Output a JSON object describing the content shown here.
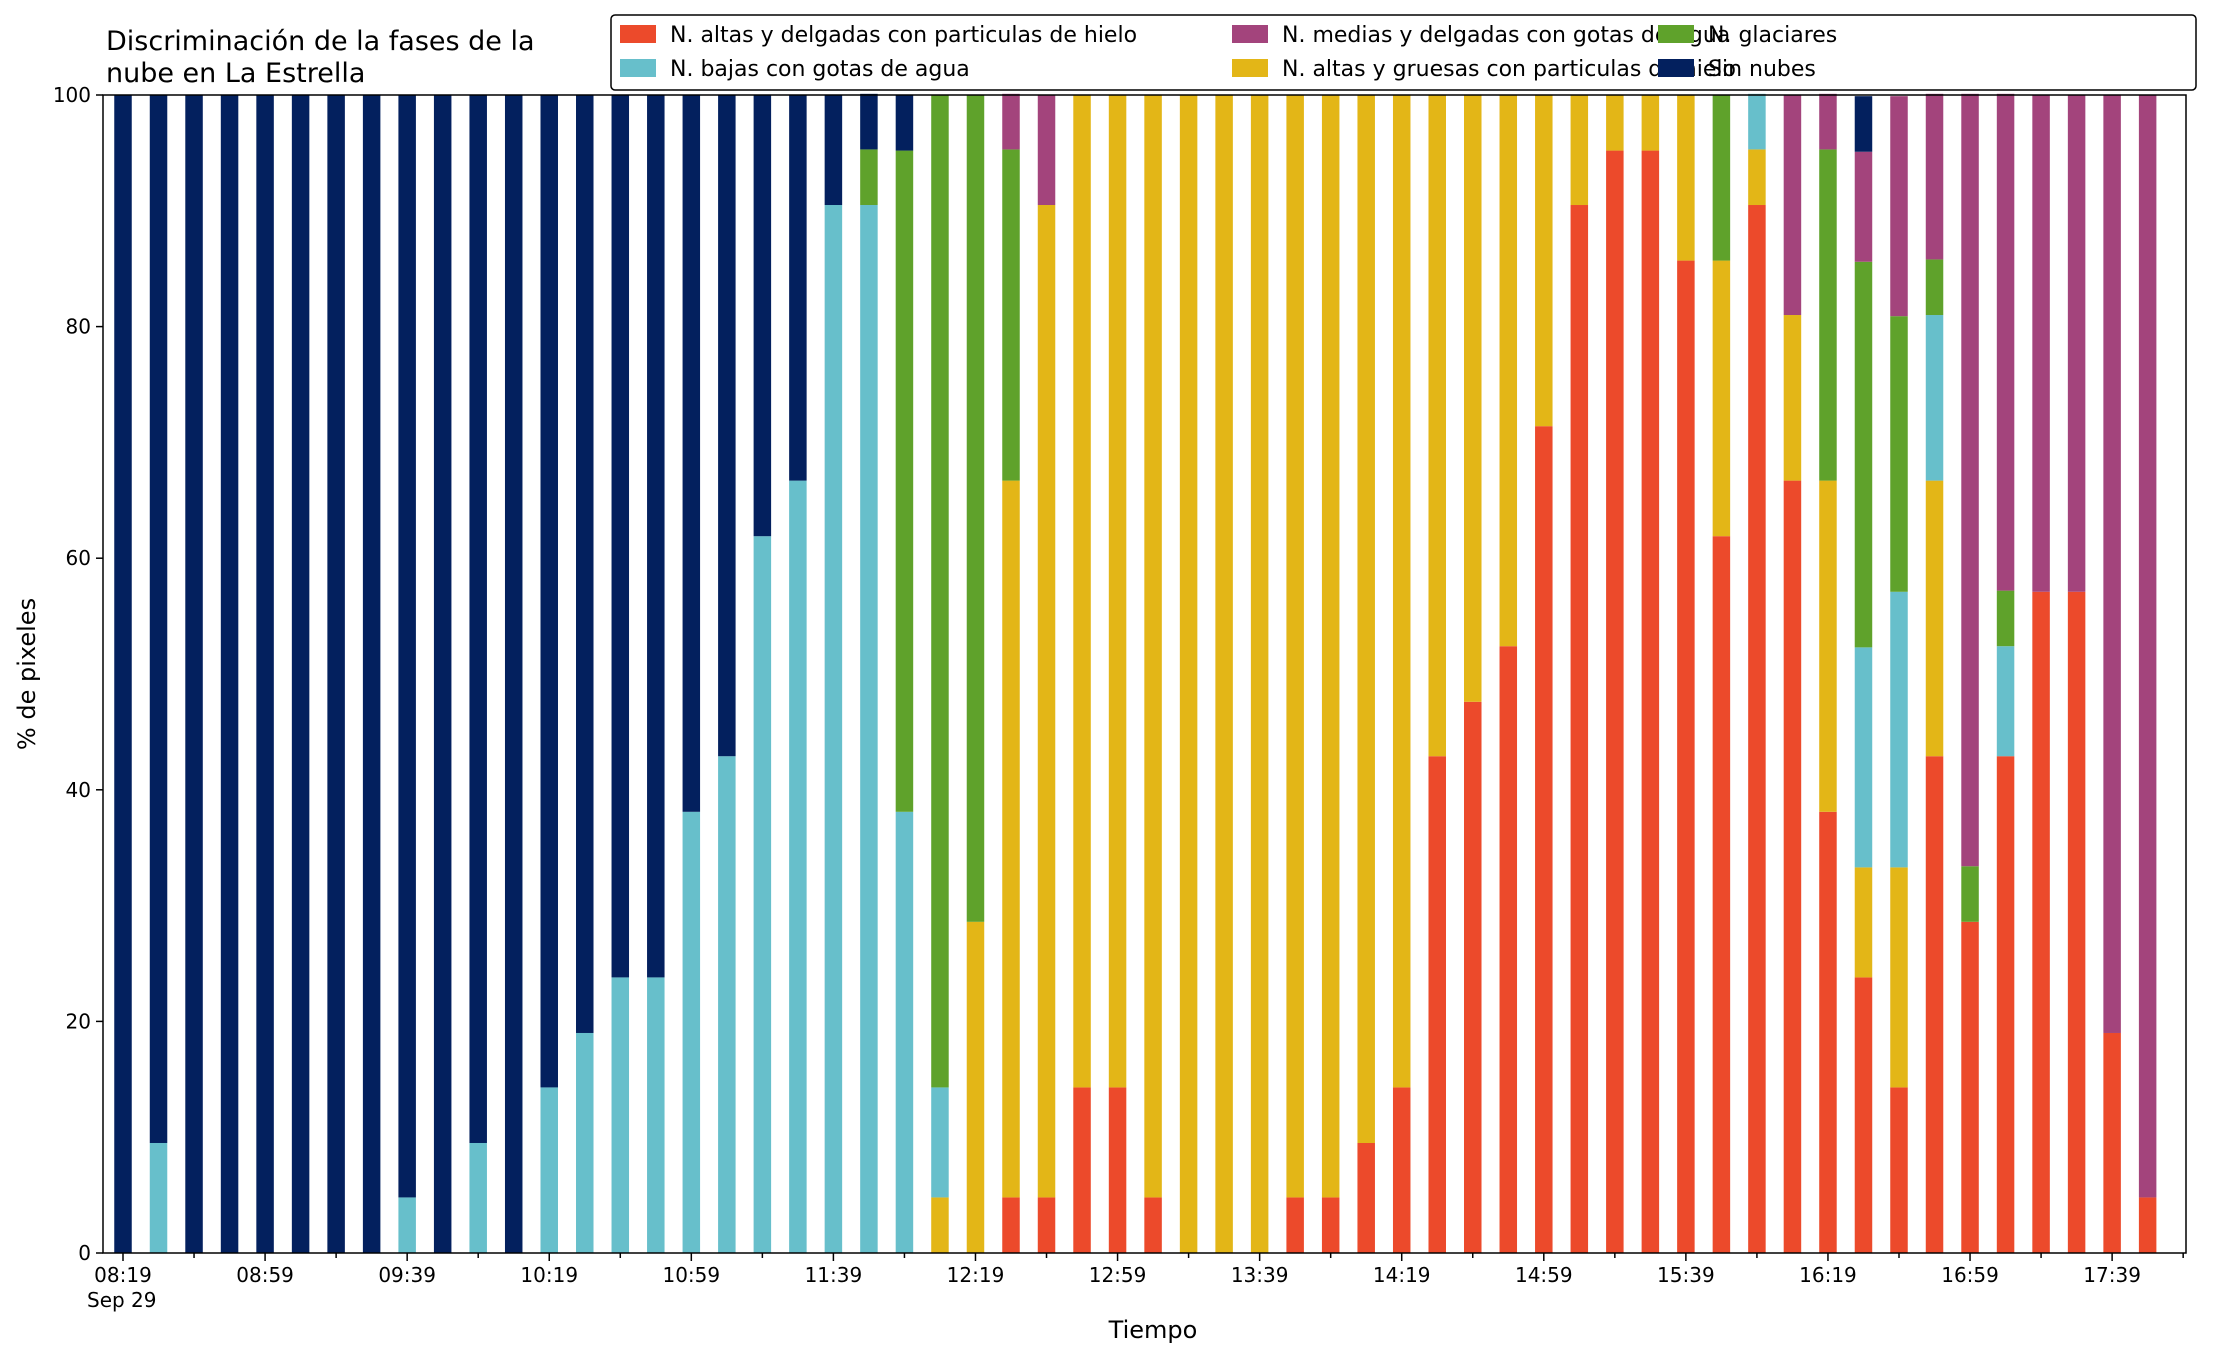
{
  "chart_data": {
    "type": "bar",
    "stacked": true,
    "title": [
      "Discriminación de la fases de la",
      "nube en La Estrella"
    ],
    "xlabel": "Tiempo",
    "ylabel": "% de pixeles",
    "ylim": [
      0,
      100
    ],
    "yticks": [
      0,
      20,
      40,
      60,
      80,
      100
    ],
    "xtick_labels": [
      "08:19",
      "08:59",
      "09:39",
      "10:19",
      "10:59",
      "11:39",
      "12:19",
      "12:59",
      "13:39",
      "14:19",
      "14:59",
      "15:39",
      "16:19",
      "16:59",
      "17:39"
    ],
    "date_label": "Sep 29",
    "grid": false,
    "legend_position": "top-right",
    "categories": [
      "08:19",
      "08:29",
      "08:39",
      "08:49",
      "08:59",
      "09:09",
      "09:19",
      "09:29",
      "09:39",
      "09:49",
      "09:59",
      "10:09",
      "10:19",
      "10:29",
      "10:39",
      "10:49",
      "10:59",
      "11:09",
      "11:19",
      "11:29",
      "11:39",
      "11:49",
      "11:59",
      "12:09",
      "12:19",
      "12:29",
      "12:39",
      "12:49",
      "12:59",
      "13:09",
      "13:19",
      "13:29",
      "13:39",
      "13:49",
      "13:59",
      "14:09",
      "14:19",
      "14:29",
      "14:39",
      "14:49",
      "14:59",
      "15:09",
      "15:19",
      "15:29",
      "15:39",
      "15:49",
      "15:59",
      "16:09",
      "16:19",
      "16:29",
      "16:39",
      "16:49",
      "16:59",
      "17:09",
      "17:19",
      "17:29",
      "17:39",
      "17:49"
    ],
    "series": [
      {
        "name": "N. altas y delgadas con particulas de hielo",
        "color": "#ec4a2b",
        "values": [
          0,
          0,
          0,
          0,
          0,
          0,
          0,
          0,
          0,
          0,
          0,
          0,
          0,
          0,
          0,
          0,
          0,
          0,
          0,
          0,
          0,
          0,
          0,
          0,
          0,
          4.8,
          4.8,
          14.3,
          14.3,
          4.8,
          0,
          0,
          0,
          4.8,
          4.8,
          9.5,
          14.3,
          42.9,
          47.6,
          52.4,
          71.4,
          90.5,
          95.2,
          95.2,
          85.7,
          61.9,
          90.5,
          66.7,
          38.1,
          23.8,
          14.3,
          42.9,
          28.6,
          42.9,
          57.1,
          57.1,
          19.0,
          4.8
        ]
      },
      {
        "name": "N. altas y gruesas con particulas de hielo",
        "color": "#e3b617",
        "values": [
          0,
          0,
          0,
          0,
          0,
          0,
          0,
          0,
          0,
          0,
          0,
          0,
          0,
          0,
          0,
          0,
          0,
          0,
          0,
          0,
          0,
          0,
          0,
          4.8,
          28.6,
          61.9,
          85.7,
          85.7,
          85.7,
          95.2,
          100,
          100,
          100,
          95.2,
          95.2,
          90.5,
          85.7,
          57.1,
          52.4,
          47.6,
          28.6,
          9.5,
          4.8,
          4.8,
          14.3,
          23.8,
          4.8,
          14.3,
          28.6,
          9.5,
          19.0,
          23.8,
          0,
          0,
          0,
          0,
          0,
          0
        ]
      },
      {
        "name": "N. bajas con gotas de agua",
        "color": "#67bfcb",
        "values": [
          0,
          9.5,
          0,
          0,
          0,
          0,
          0,
          0,
          4.8,
          0,
          9.5,
          0,
          14.3,
          19.0,
          23.8,
          23.8,
          38.1,
          42.9,
          61.9,
          66.7,
          90.5,
          90.5,
          38.1,
          9.5,
          0,
          0,
          0,
          0,
          0,
          0,
          0,
          0,
          0,
          0,
          0,
          0,
          0,
          0,
          0,
          0,
          0,
          0,
          0,
          0,
          0,
          0,
          4.8,
          0,
          0,
          19.0,
          23.8,
          14.3,
          0,
          9.5,
          0,
          0,
          0,
          0
        ]
      },
      {
        "name": "N. glaciares",
        "color": "#5fa22b",
        "values": [
          0,
          0,
          0,
          0,
          0,
          0,
          0,
          0,
          0,
          0,
          0,
          0,
          0,
          0,
          0,
          0,
          0,
          0,
          0,
          0,
          0,
          4.8,
          57.1,
          85.7,
          71.4,
          28.6,
          0,
          0,
          0,
          0,
          0,
          0,
          0,
          0,
          0,
          0,
          0,
          0,
          0,
          0,
          0,
          0,
          0,
          0,
          0,
          14.3,
          0,
          0,
          28.6,
          33.3,
          23.8,
          4.8,
          4.8,
          4.8,
          0,
          0,
          0,
          0
        ]
      },
      {
        "name": "N. medias y delgadas con gotas de agua",
        "color": "#a3447c",
        "values": [
          0,
          0,
          0,
          0,
          0,
          0,
          0,
          0,
          0,
          0,
          0,
          0,
          0,
          0,
          0,
          0,
          0,
          0,
          0,
          0,
          0,
          0,
          0,
          0,
          0,
          4.8,
          9.5,
          0,
          0,
          0,
          0,
          0,
          0,
          0,
          0,
          0,
          0,
          0,
          0,
          0,
          0,
          0,
          0,
          0,
          0,
          0,
          0,
          19.0,
          4.8,
          9.5,
          19.0,
          14.3,
          66.7,
          42.9,
          42.9,
          42.9,
          81.0,
          95.2
        ]
      },
      {
        "name": "Sin nubes",
        "color": "#03205e",
        "values": [
          100,
          90.5,
          100,
          100,
          100,
          100,
          100,
          100,
          95.2,
          100,
          90.5,
          100,
          85.7,
          81.0,
          76.2,
          76.2,
          61.9,
          57.1,
          38.1,
          33.3,
          9.5,
          4.8,
          4.8,
          0,
          0,
          0,
          0,
          0,
          0,
          0,
          0,
          0,
          0,
          0,
          0,
          0,
          0,
          0,
          0,
          0,
          0,
          0,
          0,
          0,
          0,
          0,
          0,
          0,
          0,
          4.8,
          0,
          0,
          0,
          0,
          0,
          0,
          0,
          0
        ]
      }
    ],
    "legend_order": [
      0,
      2,
      4,
      1,
      3,
      5
    ]
  }
}
